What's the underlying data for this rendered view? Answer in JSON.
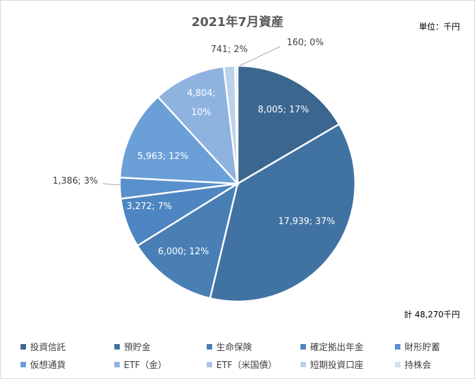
{
  "chart_data": {
    "type": "pie",
    "title": "2021年7月資産",
    "unit_label": "単位：千円",
    "total_label": "計 48,270千円",
    "slices": [
      {
        "name": "投資信託",
        "value": 8005,
        "label": "8,005; 17%",
        "color": "#3a668f"
      },
      {
        "name": "預貯金",
        "value": 17939,
        "label": "17,939; 37%",
        "color": "#4173a2"
      },
      {
        "name": "生命保険",
        "value": 6000,
        "label": "6,000; 12%",
        "color": "#4a7fb5"
      },
      {
        "name": "確定拠出年金",
        "value": 3272,
        "label": "3,272; 7%",
        "color": "#4d86c2"
      },
      {
        "name": "財形貯蓄",
        "value": 1386,
        "label": "1,386; 3%",
        "color": "#5891cd"
      },
      {
        "name": "仮想通貨",
        "value": 5963,
        "label": "5,963; 12%",
        "color": "#6b9fd7"
      },
      {
        "name": "ETF（金）",
        "value": 4804,
        "label": "4,804; 10%",
        "color": "#8fb3df"
      },
      {
        "name": "ETF（米国債）",
        "value": 0,
        "label": "",
        "color": "#a9c4e7"
      },
      {
        "name": "短期投資口座",
        "value": 741,
        "label": "741; 2%",
        "color": "#bcd1ec"
      },
      {
        "name": "持株会",
        "value": 160,
        "label": "160; 0%",
        "color": "#d2e0f1"
      }
    ]
  }
}
